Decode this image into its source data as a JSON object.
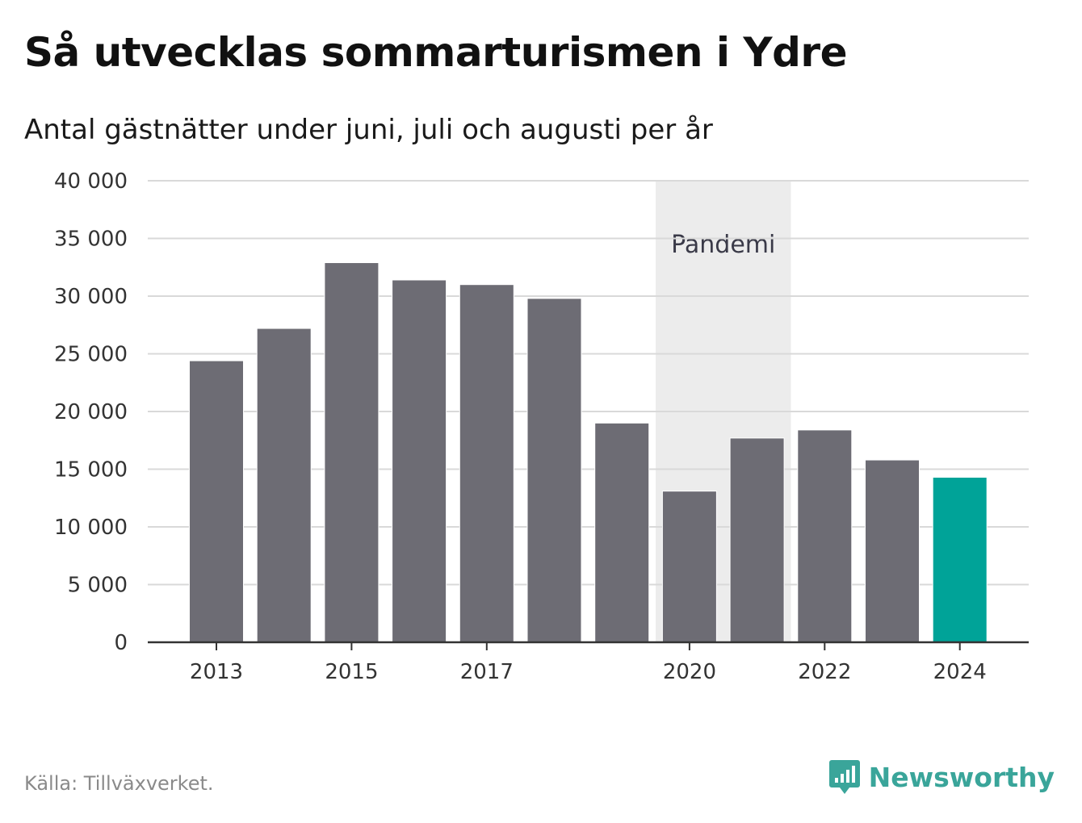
{
  "header": {
    "title": "Så utvecklas sommarturismen i Ydre",
    "subtitle": "Antal gästnätter under juni, juli och augusti per år"
  },
  "footer": {
    "source": "Källa: Tillväxverket.",
    "brand": "Newsworthy",
    "brand_icon": "bar-chart-speech-bubble-icon"
  },
  "colors": {
    "bar": "#6d6c74",
    "highlight": "#00a398",
    "band": "#ececec",
    "grid": "#d9d9d9",
    "axis": "#333333",
    "brand": "#3aa59a"
  },
  "chart_data": {
    "type": "bar",
    "categories": [
      "2013",
      "2014",
      "2015",
      "2016",
      "2017",
      "2018",
      "2019",
      "2020",
      "2021",
      "2022",
      "2023",
      "2024"
    ],
    "values": [
      24400,
      27200,
      32900,
      31400,
      31000,
      29800,
      19000,
      13100,
      17700,
      18400,
      15800,
      14300
    ],
    "highlight_category": "2024",
    "x_tick_labels": [
      "2013",
      "2015",
      "2017",
      "2020",
      "2022",
      "2024"
    ],
    "ylim": [
      0,
      40000
    ],
    "y_ticks": [
      0,
      5000,
      10000,
      15000,
      20000,
      25000,
      30000,
      35000,
      40000
    ],
    "y_tick_labels": [
      "0",
      "5 000",
      "10 000",
      "15 000",
      "20 000",
      "25 000",
      "30 000",
      "35 000",
      "40 000"
    ],
    "grid": true,
    "annotation": {
      "label": "Pandemi",
      "from_category": "2020",
      "to_category": "2021"
    },
    "xlabel": "",
    "ylabel": ""
  }
}
